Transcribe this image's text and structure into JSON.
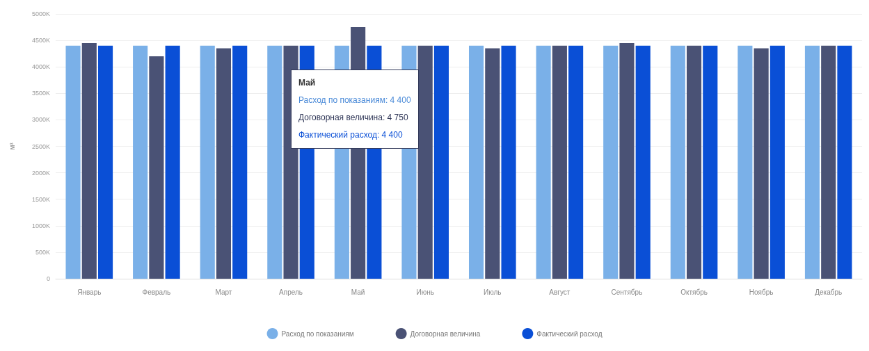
{
  "chart_data": {
    "type": "bar",
    "ylabel": "м³",
    "categories": [
      "Январь",
      "Февраль",
      "Март",
      "Апрель",
      "Май",
      "Июнь",
      "Июль",
      "Август",
      "Сентябрь",
      "Октябрь",
      "Ноябрь",
      "Декабрь"
    ],
    "series": [
      {
        "name": "Расход по показаниям",
        "color": "#7ab0e8",
        "values": [
          4400,
          4400,
          4400,
          4400,
          4400,
          4400,
          4400,
          4400,
          4400,
          4400,
          4400,
          4400
        ]
      },
      {
        "name": "Договорная величина",
        "color": "#4a5275",
        "values": [
          4450,
          4200,
          4350,
          4400,
          4750,
          4400,
          4350,
          4400,
          4450,
          4400,
          4350,
          4400
        ]
      },
      {
        "name": "Фактический расход",
        "color": "#0a4fd6",
        "values": [
          4400,
          4400,
          4400,
          4400,
          4400,
          4400,
          4400,
          4400,
          4400,
          4400,
          4400,
          4400
        ]
      }
    ],
    "ylim": [
      0,
      5000
    ],
    "yticks": [
      0,
      {
        "value": 500,
        "label": "500K"
      },
      {
        "value": 1000,
        "label": "1000K"
      },
      {
        "value": 1500,
        "label": "1500K"
      },
      {
        "value": 2000,
        "label": "2000K"
      },
      {
        "value": 2500,
        "label": "2500K"
      },
      {
        "value": 3000,
        "label": "3000K"
      },
      {
        "value": 3500,
        "label": "3500K"
      },
      {
        "value": 4000,
        "label": "4000K"
      },
      {
        "value": 4500,
        "label": "4500K"
      },
      {
        "value": 5000,
        "label": "5000K"
      }
    ],
    "annotations": [
      "Май",
      "Расход по показаниям: 4 400",
      "Договорная величина: 4 750",
      "Фактический расход: 4 400"
    ],
    "grid": true,
    "legend": "bottom"
  }
}
